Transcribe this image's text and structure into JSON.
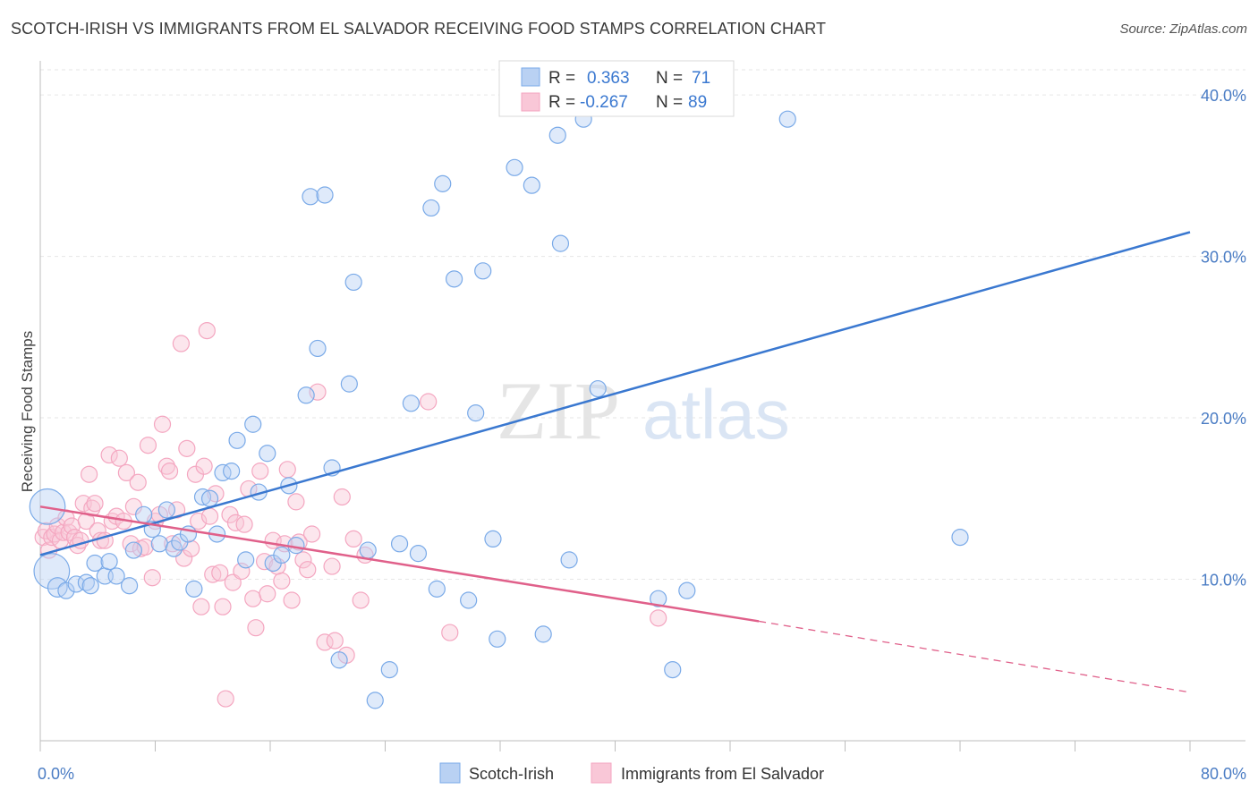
{
  "title": "SCOTCH-IRISH VS IMMIGRANTS FROM EL SALVADOR RECEIVING FOOD STAMPS CORRELATION CHART",
  "source": "Source: ZipAtlas.com",
  "watermark": {
    "zip": "ZIP",
    "atlas": "atlas"
  },
  "chart_data": {
    "type": "scatter",
    "title": "SCOTCH-IRISH VS IMMIGRANTS FROM EL SALVADOR RECEIVING FOOD STAMPS CORRELATION CHART",
    "xlabel": "",
    "ylabel": "Receiving Food Stamps",
    "xlim": [
      0,
      80
    ],
    "ylim": [
      0,
      42
    ],
    "x_tick_labels": {
      "left": "0.0%",
      "right": "80.0%"
    },
    "y_ticks": [
      10,
      20,
      30,
      40
    ],
    "y_tick_labels": [
      "10.0%",
      "20.0%",
      "30.0%",
      "40.0%"
    ],
    "grid": true,
    "legend_placement": "top-center",
    "stats_legend": [
      {
        "r_label": "R =",
        "r_value": "0.363",
        "n_label": "N =",
        "n_value": "71"
      },
      {
        "r_label": "R =",
        "r_value": "-0.267",
        "n_label": "N =",
        "n_value": "89"
      }
    ],
    "series": [
      {
        "name": "Scotch-Irish",
        "color": "#7aaae8",
        "line_color": "#3a78d0",
        "trend": {
          "x0": 0,
          "y0": 11.5,
          "x1": 80,
          "y1": 31.5
        },
        "points": [
          [
            0.5,
            14.5,
            2.2
          ],
          [
            0.8,
            10.5,
            2.2
          ],
          [
            1.2,
            9.5,
            1.2
          ],
          [
            1.8,
            9.3,
            1.0
          ],
          [
            2.5,
            9.7,
            1.0
          ],
          [
            3.2,
            9.8,
            1.0
          ],
          [
            3.5,
            9.6,
            1.0
          ],
          [
            3.8,
            11.0,
            1.0
          ],
          [
            4.5,
            10.2,
            1.0
          ],
          [
            4.8,
            11.1,
            1.0
          ],
          [
            5.3,
            10.2,
            1.0
          ],
          [
            6.2,
            9.6,
            1.0
          ],
          [
            6.5,
            11.8,
            1.0
          ],
          [
            7.2,
            14.0,
            1.0
          ],
          [
            7.8,
            13.1,
            1.0
          ],
          [
            8.3,
            12.2,
            1.0
          ],
          [
            8.8,
            14.3,
            1.0
          ],
          [
            9.3,
            11.9,
            1.0
          ],
          [
            9.7,
            12.3,
            1.0
          ],
          [
            10.3,
            12.8,
            1.0
          ],
          [
            10.7,
            9.4,
            1.0
          ],
          [
            11.3,
            15.1,
            1.0
          ],
          [
            11.8,
            15.0,
            1.0
          ],
          [
            12.3,
            12.8,
            1.0
          ],
          [
            12.7,
            16.6,
            1.0
          ],
          [
            13.3,
            16.7,
            1.0
          ],
          [
            13.7,
            18.6,
            1.0
          ],
          [
            14.3,
            11.2,
            1.0
          ],
          [
            14.8,
            19.6,
            1.0
          ],
          [
            15.2,
            15.4,
            1.0
          ],
          [
            15.8,
            17.8,
            1.0
          ],
          [
            16.2,
            11.0,
            1.0
          ],
          [
            16.8,
            11.5,
            1.0
          ],
          [
            17.3,
            15.8,
            1.0
          ],
          [
            17.8,
            12.1,
            1.0
          ],
          [
            18.5,
            21.4,
            1.0
          ],
          [
            18.8,
            33.7,
            1.0
          ],
          [
            19.3,
            24.3,
            1.0
          ],
          [
            19.8,
            33.8,
            1.0
          ],
          [
            20.3,
            16.9,
            1.0
          ],
          [
            20.8,
            5.0,
            1.0
          ],
          [
            21.5,
            22.1,
            1.0
          ],
          [
            21.8,
            28.4,
            1.0
          ],
          [
            22.8,
            11.8,
            1.0
          ],
          [
            23.3,
            2.5,
            1.0
          ],
          [
            24.3,
            4.4,
            1.0
          ],
          [
            25.0,
            12.2,
            1.0
          ],
          [
            25.8,
            20.9,
            1.0
          ],
          [
            26.3,
            11.6,
            1.0
          ],
          [
            27.2,
            33.0,
            1.0
          ],
          [
            27.6,
            9.4,
            1.0
          ],
          [
            28.0,
            34.5,
            1.0
          ],
          [
            28.8,
            28.6,
            1.0
          ],
          [
            29.8,
            8.7,
            1.0
          ],
          [
            30.3,
            20.3,
            1.0
          ],
          [
            30.8,
            29.1,
            1.0
          ],
          [
            31.5,
            12.5,
            1.0
          ],
          [
            31.8,
            6.3,
            1.0
          ],
          [
            33.0,
            35.5,
            1.0
          ],
          [
            34.2,
            34.4,
            1.0
          ],
          [
            35.0,
            6.6,
            1.0
          ],
          [
            36.0,
            37.5,
            1.0
          ],
          [
            36.2,
            30.8,
            1.0
          ],
          [
            36.8,
            11.2,
            1.0
          ],
          [
            37.8,
            38.5,
            1.0
          ],
          [
            38.8,
            21.8,
            1.0
          ],
          [
            43.0,
            8.8,
            1.0
          ],
          [
            44.0,
            4.4,
            1.0
          ],
          [
            45.0,
            9.3,
            1.0
          ],
          [
            52.0,
            38.5,
            1.0
          ],
          [
            64.0,
            12.6,
            1.0
          ]
        ]
      },
      {
        "name": "Immigrants from El Salvador",
        "color": "#f4a6c0",
        "line_color": "#e0608a",
        "trend": {
          "x0": 0,
          "y0": 14.5,
          "x1": 50,
          "y1": 7.4
        },
        "trend_dashed": {
          "x0": 50,
          "y0": 7.4,
          "x1": 80,
          "y1": 3.0
        },
        "points": [
          [
            0.2,
            12.6,
            1.0
          ],
          [
            0.4,
            13.0,
            1.0
          ],
          [
            0.6,
            11.8,
            1.0
          ],
          [
            0.8,
            12.6,
            1.0
          ],
          [
            1.0,
            12.8,
            1.0
          ],
          [
            1.2,
            13.3,
            1.0
          ],
          [
            1.4,
            12.4,
            1.0
          ],
          [
            1.6,
            12.9,
            1.0
          ],
          [
            1.8,
            13.8,
            1.0
          ],
          [
            2.0,
            12.9,
            1.0
          ],
          [
            2.2,
            13.3,
            1.0
          ],
          [
            2.4,
            12.6,
            1.0
          ],
          [
            2.6,
            12.1,
            1.0
          ],
          [
            2.8,
            12.4,
            1.0
          ],
          [
            3.0,
            14.7,
            1.0
          ],
          [
            3.2,
            13.6,
            1.0
          ],
          [
            3.4,
            16.5,
            1.0
          ],
          [
            3.6,
            14.4,
            1.0
          ],
          [
            3.8,
            14.7,
            1.0
          ],
          [
            4.0,
            13.0,
            1.0
          ],
          [
            4.2,
            12.4,
            1.0
          ],
          [
            4.5,
            12.4,
            1.0
          ],
          [
            4.8,
            17.7,
            1.0
          ],
          [
            5.0,
            13.6,
            1.0
          ],
          [
            5.3,
            13.9,
            1.0
          ],
          [
            5.5,
            17.5,
            1.0
          ],
          [
            5.8,
            13.6,
            1.0
          ],
          [
            6.0,
            16.6,
            1.0
          ],
          [
            6.3,
            12.2,
            1.0
          ],
          [
            6.5,
            14.5,
            1.0
          ],
          [
            6.8,
            16.0,
            1.0
          ],
          [
            7.0,
            11.9,
            1.0
          ],
          [
            7.3,
            12.0,
            1.0
          ],
          [
            7.5,
            18.3,
            1.0
          ],
          [
            7.8,
            10.1,
            1.0
          ],
          [
            8.0,
            13.6,
            1.0
          ],
          [
            8.3,
            14.0,
            1.0
          ],
          [
            8.5,
            19.6,
            1.0
          ],
          [
            8.8,
            17.0,
            1.0
          ],
          [
            9.0,
            16.7,
            1.0
          ],
          [
            9.2,
            12.2,
            1.0
          ],
          [
            9.5,
            14.3,
            1.0
          ],
          [
            9.8,
            24.6,
            1.0
          ],
          [
            10.0,
            11.3,
            1.0
          ],
          [
            10.2,
            18.1,
            1.0
          ],
          [
            10.5,
            11.9,
            1.0
          ],
          [
            10.8,
            16.5,
            1.0
          ],
          [
            11.0,
            13.6,
            1.0
          ],
          [
            11.2,
            8.3,
            1.0
          ],
          [
            11.4,
            17.0,
            1.0
          ],
          [
            11.6,
            25.4,
            1.0
          ],
          [
            11.8,
            13.9,
            1.0
          ],
          [
            12.0,
            10.3,
            1.0
          ],
          [
            12.2,
            15.3,
            1.0
          ],
          [
            12.5,
            10.4,
            1.0
          ],
          [
            12.7,
            8.3,
            1.0
          ],
          [
            12.9,
            2.6,
            1.0
          ],
          [
            13.2,
            14.0,
            1.0
          ],
          [
            13.4,
            9.8,
            1.0
          ],
          [
            13.6,
            13.5,
            1.0
          ],
          [
            14.0,
            10.5,
            1.0
          ],
          [
            14.2,
            13.4,
            1.0
          ],
          [
            14.5,
            15.6,
            1.0
          ],
          [
            14.8,
            8.8,
            1.0
          ],
          [
            15.0,
            7.0,
            1.0
          ],
          [
            15.3,
            16.7,
            1.0
          ],
          [
            15.6,
            11.1,
            1.0
          ],
          [
            15.8,
            9.1,
            1.0
          ],
          [
            16.2,
            12.4,
            1.0
          ],
          [
            16.5,
            10.8,
            1.0
          ],
          [
            16.8,
            9.9,
            1.0
          ],
          [
            17.0,
            12.2,
            1.0
          ],
          [
            17.2,
            16.8,
            1.0
          ],
          [
            17.5,
            8.7,
            1.0
          ],
          [
            17.8,
            14.8,
            1.0
          ],
          [
            18.0,
            12.3,
            1.0
          ],
          [
            18.3,
            11.2,
            1.0
          ],
          [
            18.6,
            10.6,
            1.0
          ],
          [
            18.9,
            12.8,
            1.0
          ],
          [
            19.3,
            21.6,
            1.0
          ],
          [
            19.8,
            6.1,
            1.0
          ],
          [
            20.3,
            10.8,
            1.0
          ],
          [
            20.5,
            6.2,
            1.0
          ],
          [
            21.0,
            15.1,
            1.0
          ],
          [
            21.3,
            5.3,
            1.0
          ],
          [
            21.8,
            12.5,
            1.0
          ],
          [
            22.3,
            8.7,
            1.0
          ],
          [
            22.6,
            11.5,
            1.0
          ],
          [
            27.0,
            21.0,
            1.0
          ],
          [
            28.5,
            6.7,
            1.0
          ],
          [
            43.0,
            7.6,
            1.0
          ]
        ]
      }
    ]
  }
}
